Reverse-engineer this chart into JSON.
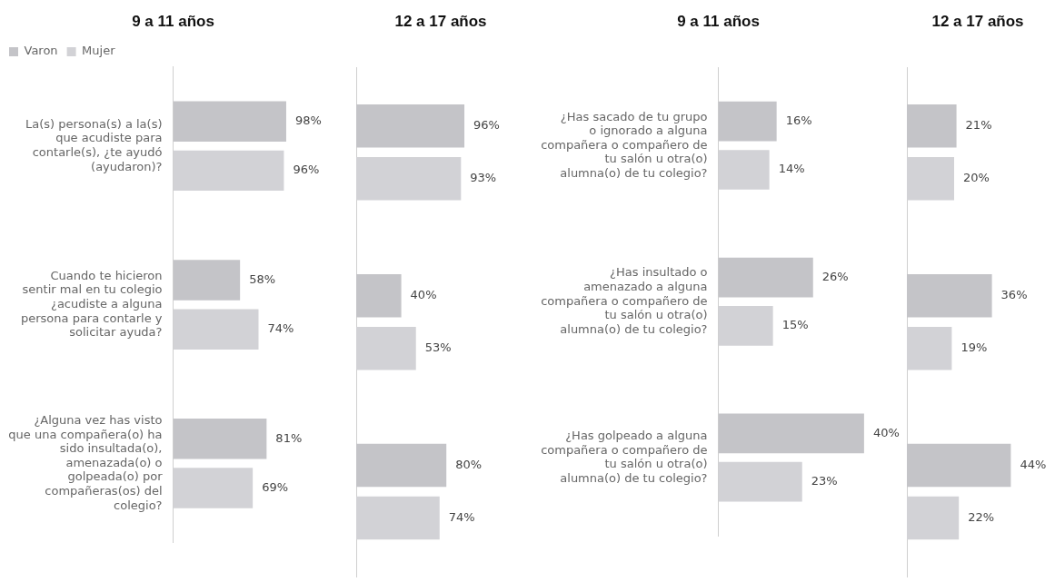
{
  "chart_data": [
    {
      "type": "bar",
      "orientation": "horizontal",
      "title": "9 a 11 años",
      "legend": "top left",
      "tick_labels": "y",
      "grid": false,
      "categories": [
        "La(s) persona(s) a la(s) que acudiste para contarle(s), ¿te ayudó (ayudaron)?",
        "Cuando te hicieron sentir mal en tu colegio ¿acudiste a alguna persona para contarle y solicitar ayuda?",
        "¿Alguna vez has visto que una compañera(o) ha sido insultada(o), amenazada(o) o golpeada(o) por compañeras(os) del colegio?"
      ],
      "series": [
        {
          "name": "Varon",
          "color": "#c4c4c8",
          "values": [
            98,
            58,
            81
          ],
          "value_labels": [
            "98%",
            "58%",
            "81%"
          ]
        },
        {
          "name": "Mujer",
          "color": "#d2d2d6",
          "values": [
            96,
            74,
            69
          ],
          "value_labels": [
            "96%",
            "74%",
            "69%"
          ]
        }
      ]
    },
    {
      "type": "bar",
      "orientation": "horizontal",
      "title": "12 a 17 años",
      "tick_labels": false,
      "grid": false,
      "categories": [
        null,
        null,
        null
      ],
      "series": [
        {
          "color": "#c4c4c8",
          "values": [
            96,
            40,
            80
          ],
          "value_labels": [
            "96%",
            "40%",
            "80%"
          ]
        },
        {
          "color": "#d2d2d6",
          "values": [
            93,
            53,
            74
          ],
          "value_labels": [
            "93%",
            "53%",
            "74%"
          ]
        }
      ]
    },
    {
      "type": "bar",
      "orientation": "horizontal",
      "title": "9 a 11 años",
      "tick_labels": "y",
      "grid": false,
      "categories": [
        "¿Has sacado de tu grupo o ignorado a alguna compañera o compañero de tu salón u otra(o) alumna(o) de tu colegio?",
        "¿Has insultado o amenazado a alguna compañera o compañero de tu salón u otra(o) alumna(o) de tu colegio?",
        "¿Has golpeado a alguna compañera o compañero de tu salón u otra(o) alumna(o) de tu colegio?"
      ],
      "series": [
        {
          "color": "#c4c4c8",
          "values": [
            16,
            26,
            40
          ],
          "value_labels": [
            "16%",
            "26%",
            "40%"
          ]
        },
        {
          "color": "#d2d2d6",
          "values": [
            14,
            15,
            23
          ],
          "value_labels": [
            "14%",
            "15%",
            "23%"
          ]
        }
      ]
    },
    {
      "type": "bar",
      "orientation": "horizontal",
      "title": "12 a 17 años",
      "tick_labels": false,
      "grid": false,
      "categories": [
        null,
        null,
        null
      ],
      "series": [
        {
          "color": "#c4c4c8",
          "values": [
            21,
            36,
            44
          ],
          "value_labels": [
            "21%",
            "36%",
            "44%"
          ]
        },
        {
          "color": "#d2d2d6",
          "values": [
            20,
            19,
            22
          ],
          "value_labels": [
            "20%",
            "19%",
            "22%"
          ]
        }
      ]
    }
  ]
}
